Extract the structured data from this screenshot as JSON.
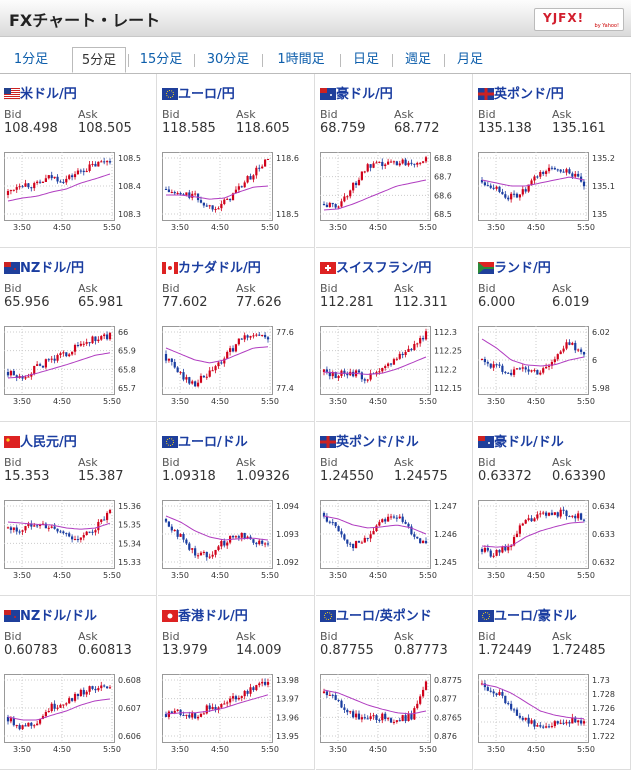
{
  "app": {
    "title": "FXチャート・レート",
    "logo": "YJFX!",
    "logo_sub": "by Yahoo!"
  },
  "tabs": [
    "1分足",
    "5分足",
    "15分足",
    "30分足",
    "1時間足",
    "日足",
    "週足",
    "月足"
  ],
  "active_tab": 1,
  "labels": {
    "bid": "Bid",
    "ask": "Ask"
  },
  "colors": {
    "up": "#d0021b",
    "down": "#1a3da0",
    "ma": "#b03cc0",
    "pair_text": "#1a3da0"
  },
  "pairs": [
    {
      "name": "米ドル/円",
      "flag": "us-flag-icon",
      "bid": "108.498",
      "ask": "108.505",
      "chart_data": {
        "type": "candlestick",
        "x_ticks": [
          "3:50",
          "4:50",
          "5:50"
        ],
        "y_ticks": [
          "108.5",
          "108.4",
          "108.3"
        ],
        "trend": [
          0.35,
          0.55,
          0.5,
          0.65,
          0.6,
          0.75,
          0.85,
          0.95
        ],
        "ma": [
          0.25,
          0.3,
          0.33,
          0.4,
          0.45,
          0.55,
          0.62,
          0.7
        ]
      }
    },
    {
      "name": "ユーロ/円",
      "flag": "eu-flag-icon",
      "bid": "118.585",
      "ask": "118.605",
      "chart_data": {
        "type": "candlestick",
        "x_ticks": [
          "3:50",
          "4:50",
          "5:50"
        ],
        "y_ticks": [
          "118.6",
          "118.5"
        ],
        "trend": [
          0.45,
          0.35,
          0.35,
          0.15,
          0.2,
          0.45,
          0.7,
          0.95
        ],
        "ma": [
          0.35,
          0.35,
          0.32,
          0.28,
          0.3,
          0.4,
          0.48,
          0.5
        ]
      }
    },
    {
      "name": "豪ドル/円",
      "flag": "au-flag-icon",
      "bid": "68.759",
      "ask": "68.772",
      "chart_data": {
        "type": "candlestick",
        "x_ticks": [
          "3:50",
          "4:50",
          "5:50"
        ],
        "y_ticks": [
          "68.8",
          "68.7",
          "68.6",
          "68.5"
        ],
        "trend": [
          0.2,
          0.15,
          0.45,
          0.8,
          0.85,
          0.9,
          0.9,
          0.95
        ],
        "ma": [
          0.1,
          0.12,
          0.2,
          0.3,
          0.4,
          0.5,
          0.55,
          0.6
        ]
      }
    },
    {
      "name": "英ポンド/円",
      "flag": "uk-flag-icon",
      "bid": "135.138",
      "ask": "135.161",
      "chart_data": {
        "type": "candlestick",
        "x_ticks": [
          "3:50",
          "4:50",
          "5:50"
        ],
        "y_ticks": [
          "135.2",
          "135.1",
          "135"
        ],
        "trend": [
          0.6,
          0.5,
          0.3,
          0.4,
          0.7,
          0.8,
          0.75,
          0.5
        ],
        "ma": [
          0.6,
          0.55,
          0.5,
          0.5,
          0.55,
          0.6,
          0.65,
          0.6
        ]
      }
    },
    {
      "name": "NZドル/円",
      "flag": "nz-flag-icon",
      "bid": "65.956",
      "ask": "65.981",
      "chart_data": {
        "type": "candlestick",
        "x_ticks": [
          "3:50",
          "4:50",
          "5:50"
        ],
        "y_ticks": [
          "66",
          "65.9",
          "65.8",
          "65.7"
        ],
        "trend": [
          0.3,
          0.2,
          0.35,
          0.5,
          0.6,
          0.75,
          0.85,
          0.9
        ],
        "ma": [
          0.2,
          0.22,
          0.28,
          0.35,
          0.42,
          0.5,
          0.58,
          0.62
        ]
      }
    },
    {
      "name": "カナダドル/円",
      "flag": "ca-flag-icon",
      "bid": "77.602",
      "ask": "77.626",
      "chart_data": {
        "type": "candlestick",
        "x_ticks": [
          "3:50",
          "4:50",
          "5:50"
        ],
        "y_ticks": [
          "77.6",
          "77.4"
        ],
        "trend": [
          0.6,
          0.3,
          0.1,
          0.25,
          0.5,
          0.8,
          0.95,
          0.85
        ],
        "ma": [
          0.7,
          0.6,
          0.5,
          0.45,
          0.5,
          0.6,
          0.7,
          0.72
        ]
      }
    },
    {
      "name": "スイスフラン/円",
      "flag": "ch-flag-icon",
      "bid": "112.281",
      "ask": "112.311",
      "chart_data": {
        "type": "candlestick",
        "x_ticks": [
          "3:50",
          "4:50",
          "5:50"
        ],
        "y_ticks": [
          "112.3",
          "112.25",
          "112.2",
          "112.15"
        ],
        "trend": [
          0.3,
          0.25,
          0.3,
          0.2,
          0.3,
          0.55,
          0.7,
          0.95
        ],
        "ma": [
          0.3,
          0.28,
          0.28,
          0.26,
          0.28,
          0.35,
          0.45,
          0.55
        ]
      }
    },
    {
      "name": "ランド/円",
      "flag": "za-flag-icon",
      "bid": "6.000",
      "ask": "6.019",
      "chart_data": {
        "type": "candlestick",
        "x_ticks": [
          "3:50",
          "4:50",
          "5:50"
        ],
        "y_ticks": [
          "6.02",
          "6",
          "5.98"
        ],
        "trend": [
          0.5,
          0.4,
          0.3,
          0.35,
          0.3,
          0.5,
          0.8,
          0.6
        ],
        "ma": [
          0.85,
          0.7,
          0.5,
          0.42,
          0.4,
          0.42,
          0.5,
          0.55
        ]
      }
    },
    {
      "name": "人民元/円",
      "flag": "cn-flag-icon",
      "bid": "15.353",
      "ask": "15.387",
      "chart_data": {
        "type": "candlestick",
        "x_ticks": [
          "3:50",
          "4:50",
          "5:50"
        ],
        "y_ticks": [
          "15.36",
          "15.35",
          "15.34",
          "15.33"
        ],
        "trend": [
          0.6,
          0.55,
          0.7,
          0.6,
          0.5,
          0.4,
          0.6,
          0.85
        ],
        "ma": [
          0.7,
          0.68,
          0.66,
          0.65,
          0.6,
          0.58,
          0.6,
          0.68
        ]
      }
    },
    {
      "name": "ユーロ/ドル",
      "flag": "eu-us-flag-icon",
      "bid": "1.09318",
      "ask": "1.09326",
      "chart_data": {
        "type": "candlestick",
        "x_ticks": [
          "3:50",
          "4:50",
          "5:50"
        ],
        "y_ticks": [
          "1.094",
          "1.093",
          "1.092"
        ],
        "trend": [
          0.75,
          0.5,
          0.2,
          0.15,
          0.35,
          0.5,
          0.4,
          0.35
        ],
        "ma": [
          0.8,
          0.7,
          0.55,
          0.45,
          0.4,
          0.42,
          0.43,
          0.4
        ]
      }
    },
    {
      "name": "英ポンド/ドル",
      "flag": "uk-us-flag-icon",
      "bid": "1.24550",
      "ask": "1.24575",
      "chart_data": {
        "type": "candlestick",
        "x_ticks": [
          "3:50",
          "4:50",
          "5:50"
        ],
        "y_ticks": [
          "1.247",
          "1.246",
          "1.245"
        ],
        "trend": [
          0.85,
          0.6,
          0.3,
          0.4,
          0.75,
          0.8,
          0.55,
          0.3
        ],
        "ma": [
          0.8,
          0.75,
          0.65,
          0.6,
          0.62,
          0.65,
          0.6,
          0.5
        ]
      }
    },
    {
      "name": "豪ドル/ドル",
      "flag": "au-us-flag-icon",
      "bid": "0.63372",
      "ask": "0.63390",
      "chart_data": {
        "type": "candlestick",
        "x_ticks": [
          "3:50",
          "4:50",
          "5:50"
        ],
        "y_ticks": [
          "0.634",
          "0.633",
          "0.632"
        ],
        "trend": [
          0.25,
          0.15,
          0.3,
          0.7,
          0.8,
          0.85,
          0.85,
          0.75
        ],
        "ma": [
          0.3,
          0.28,
          0.3,
          0.45,
          0.55,
          0.62,
          0.68,
          0.7
        ]
      }
    },
    {
      "name": "NZドル/ドル",
      "flag": "nz-us-flag-icon",
      "bid": "0.60783",
      "ask": "0.60813",
      "chart_data": {
        "type": "candlestick",
        "x_ticks": [
          "3:50",
          "4:50",
          "5:50"
        ],
        "y_ticks": [
          "0.608",
          "0.607",
          "0.606"
        ],
        "trend": [
          0.35,
          0.2,
          0.25,
          0.5,
          0.6,
          0.75,
          0.85,
          0.8
        ],
        "ma": [
          0.35,
          0.3,
          0.3,
          0.38,
          0.45,
          0.55,
          0.62,
          0.65
        ]
      }
    },
    {
      "name": "香港ドル/円",
      "flag": "hk-flag-icon",
      "bid": "13.979",
      "ask": "14.009",
      "chart_data": {
        "type": "candlestick",
        "x_ticks": [
          "3:50",
          "4:50",
          "5:50"
        ],
        "y_ticks": [
          "13.98",
          "13.97",
          "13.96",
          "13.95"
        ],
        "trend": [
          0.4,
          0.45,
          0.35,
          0.5,
          0.55,
          0.7,
          0.85,
          0.95
        ],
        "ma": [
          0.4,
          0.42,
          0.42,
          0.45,
          0.5,
          0.58,
          0.65,
          0.72
        ]
      }
    },
    {
      "name": "ユーロ/英ポンド",
      "flag": "eu-uk-flag-icon",
      "bid": "0.87755",
      "ask": "0.87773",
      "chart_data": {
        "type": "candlestick",
        "x_ticks": [
          "3:50",
          "4:50",
          "5:50"
        ],
        "y_ticks": [
          "0.8775",
          "0.877",
          "0.8765",
          "0.876"
        ],
        "trend": [
          0.75,
          0.65,
          0.4,
          0.3,
          0.35,
          0.3,
          0.35,
          0.9
        ],
        "ma": [
          0.8,
          0.75,
          0.65,
          0.55,
          0.48,
          0.42,
          0.4,
          0.45
        ]
      }
    },
    {
      "name": "ユーロ/豪ドル",
      "flag": "eu-au-flag-icon",
      "bid": "1.72449",
      "ask": "1.72485",
      "chart_data": {
        "type": "candlestick",
        "x_ticks": [
          "3:50",
          "4:50",
          "5:50"
        ],
        "y_ticks": [
          "1.73",
          "1.728",
          "1.726",
          "1.724",
          "1.722"
        ],
        "trend": [
          0.9,
          0.8,
          0.55,
          0.3,
          0.2,
          0.25,
          0.3,
          0.3
        ],
        "ma": [
          0.9,
          0.85,
          0.75,
          0.6,
          0.45,
          0.38,
          0.34,
          0.32
        ]
      }
    }
  ]
}
